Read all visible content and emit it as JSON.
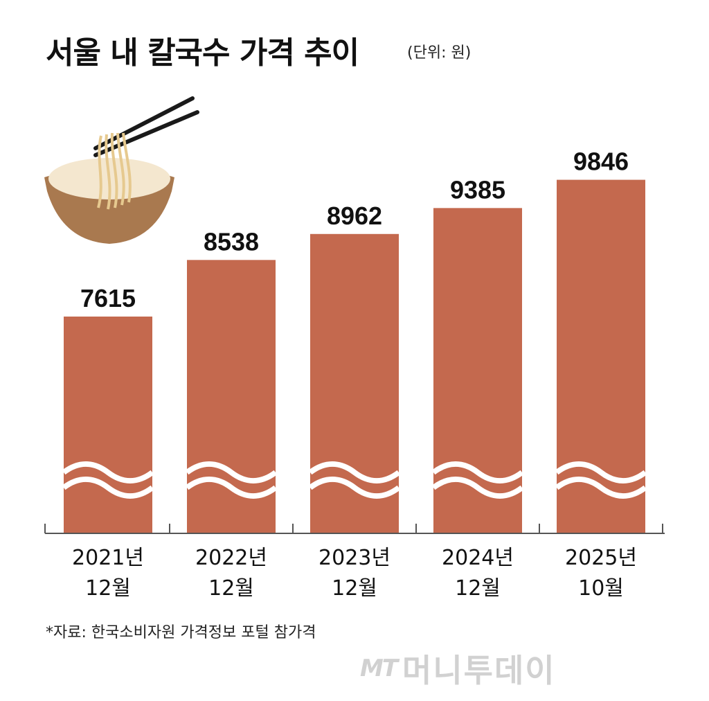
{
  "header": {
    "title": "서울 내 칼국수 가격 추이",
    "unit": "(단위: 원)"
  },
  "chart_data": {
    "type": "bar",
    "title": "서울 내 칼국수 가격 추이",
    "unit": "(단위: 원)",
    "categories": [
      [
        "2021년",
        "12월"
      ],
      [
        "2022년",
        "12월"
      ],
      [
        "2023년",
        "12월"
      ],
      [
        "2024년",
        "12월"
      ],
      [
        "2025년",
        "10월"
      ]
    ],
    "values": [
      7615,
      8538,
      8962,
      9385,
      9846
    ],
    "axis_break": true,
    "grid": false,
    "legend": "none",
    "colors": {
      "bar": "#c4694e",
      "axis": "#555555"
    }
  },
  "footer": {
    "source": "*자료: 한국소비자원 가격정보 포털 참가격",
    "watermark_logo": "MT",
    "watermark_name": "머니투데이"
  }
}
